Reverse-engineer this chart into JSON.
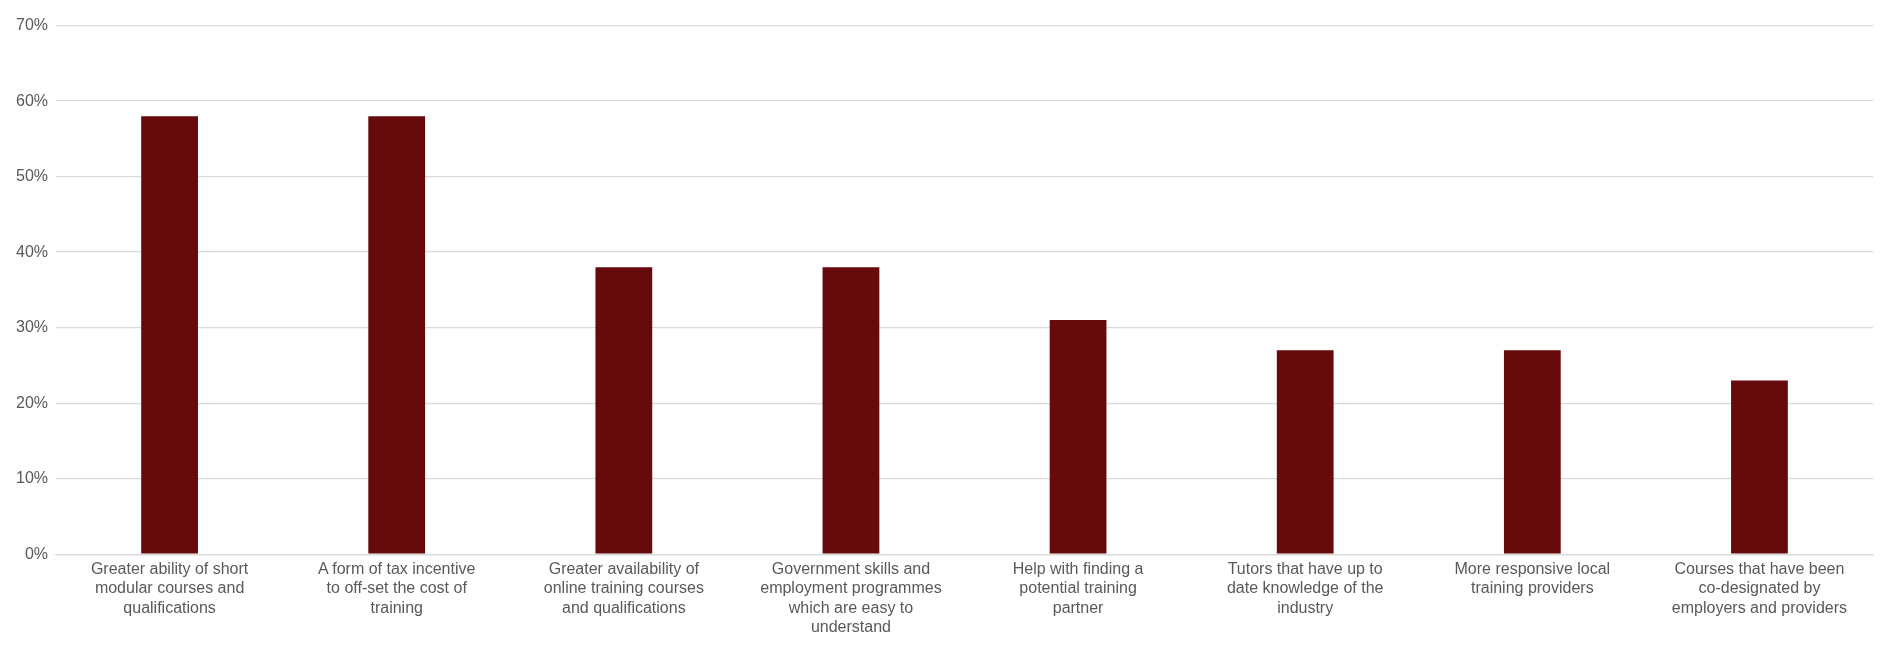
{
  "chart_data": {
    "type": "bar",
    "categories": [
      "Greater ability of short modular courses and qualifications",
      "A form of tax incentive to off-set the cost of training",
      "Greater availability of online training courses and qualifications",
      "Government skills and employment programmes which are easy to understand",
      "Help with finding a potential training partner",
      "Tutors that have up to date knowledge of the industry",
      "More responsive local training providers",
      "Courses that have been co-designated by employers and providers"
    ],
    "values": [
      58,
      58,
      38,
      38,
      31,
      27,
      27,
      23
    ],
    "color": "#660a0b",
    "ylim": [
      0,
      70
    ],
    "yticks": [
      {
        "value": 0,
        "label": "0%"
      },
      {
        "value": 10,
        "label": "10%"
      },
      {
        "value": 20,
        "label": "20%"
      },
      {
        "value": 30,
        "label": "30%"
      },
      {
        "value": 40,
        "label": "40%"
      },
      {
        "value": 50,
        "label": "50%"
      },
      {
        "value": 60,
        "label": "60%"
      },
      {
        "value": 70,
        "label": "70%"
      }
    ],
    "grid": "y",
    "legend": false
  }
}
